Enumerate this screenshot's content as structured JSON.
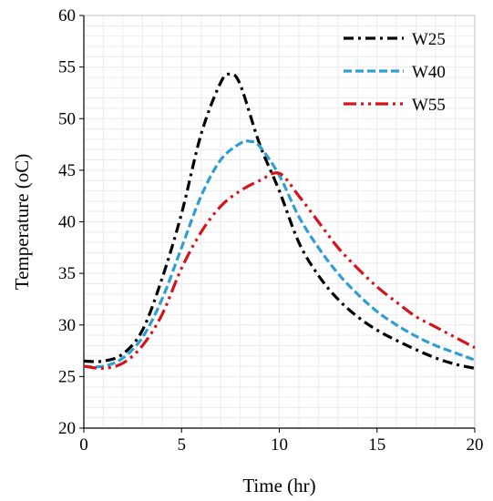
{
  "chart_data": {
    "type": "line",
    "title": "",
    "xlabel": "Time (hr)",
    "ylabel": "Temperature (oC)",
    "xlim": [
      0,
      20
    ],
    "ylim": [
      20,
      60
    ],
    "xticks": [
      0,
      5,
      10,
      15,
      20
    ],
    "yticks": [
      20,
      25,
      30,
      35,
      40,
      45,
      50,
      55,
      60
    ],
    "grid": true,
    "legend_position": "top-right",
    "series": [
      {
        "name": "W25",
        "color": "#000000",
        "dash": "dash-dot",
        "x": [
          0,
          1,
          2,
          3,
          4,
          5,
          6,
          7,
          7.5,
          8,
          9,
          10,
          11,
          12,
          13,
          14,
          15,
          16,
          17,
          18,
          19,
          20
        ],
        "y": [
          26.5,
          26.5,
          27.2,
          29.5,
          34.5,
          40.8,
          48.5,
          53.5,
          54.3,
          53.3,
          47.5,
          43.0,
          38.0,
          34.8,
          32.5,
          30.8,
          29.5,
          28.5,
          27.6,
          26.8,
          26.2,
          25.8
        ]
      },
      {
        "name": "W40",
        "color": "#2f9fd3",
        "dash": "dashed",
        "x": [
          0,
          1,
          2,
          3,
          4,
          5,
          6,
          7,
          8,
          8.5,
          9,
          10,
          11,
          12,
          13,
          14,
          15,
          16,
          17,
          18,
          19,
          20
        ],
        "y": [
          26.0,
          26.0,
          26.8,
          28.8,
          32.5,
          37.5,
          42.5,
          46.0,
          47.6,
          47.8,
          47.3,
          44.5,
          40.5,
          37.5,
          35.0,
          33.0,
          31.3,
          30.0,
          28.9,
          28.0,
          27.3,
          26.6
        ]
      },
      {
        "name": "W55",
        "color": "#d4141c",
        "dash": "dash-dot-dot",
        "x": [
          0,
          1,
          2,
          3,
          4,
          5,
          6,
          7,
          8,
          9,
          10,
          11,
          12,
          13,
          14,
          15,
          16,
          17,
          18,
          19,
          20
        ],
        "y": [
          26.0,
          25.8,
          26.3,
          28.0,
          31.0,
          35.5,
          39.0,
          41.5,
          43.0,
          44.0,
          44.7,
          42.5,
          40.0,
          37.5,
          35.5,
          33.7,
          32.2,
          30.8,
          29.8,
          28.8,
          27.8
        ]
      }
    ]
  }
}
